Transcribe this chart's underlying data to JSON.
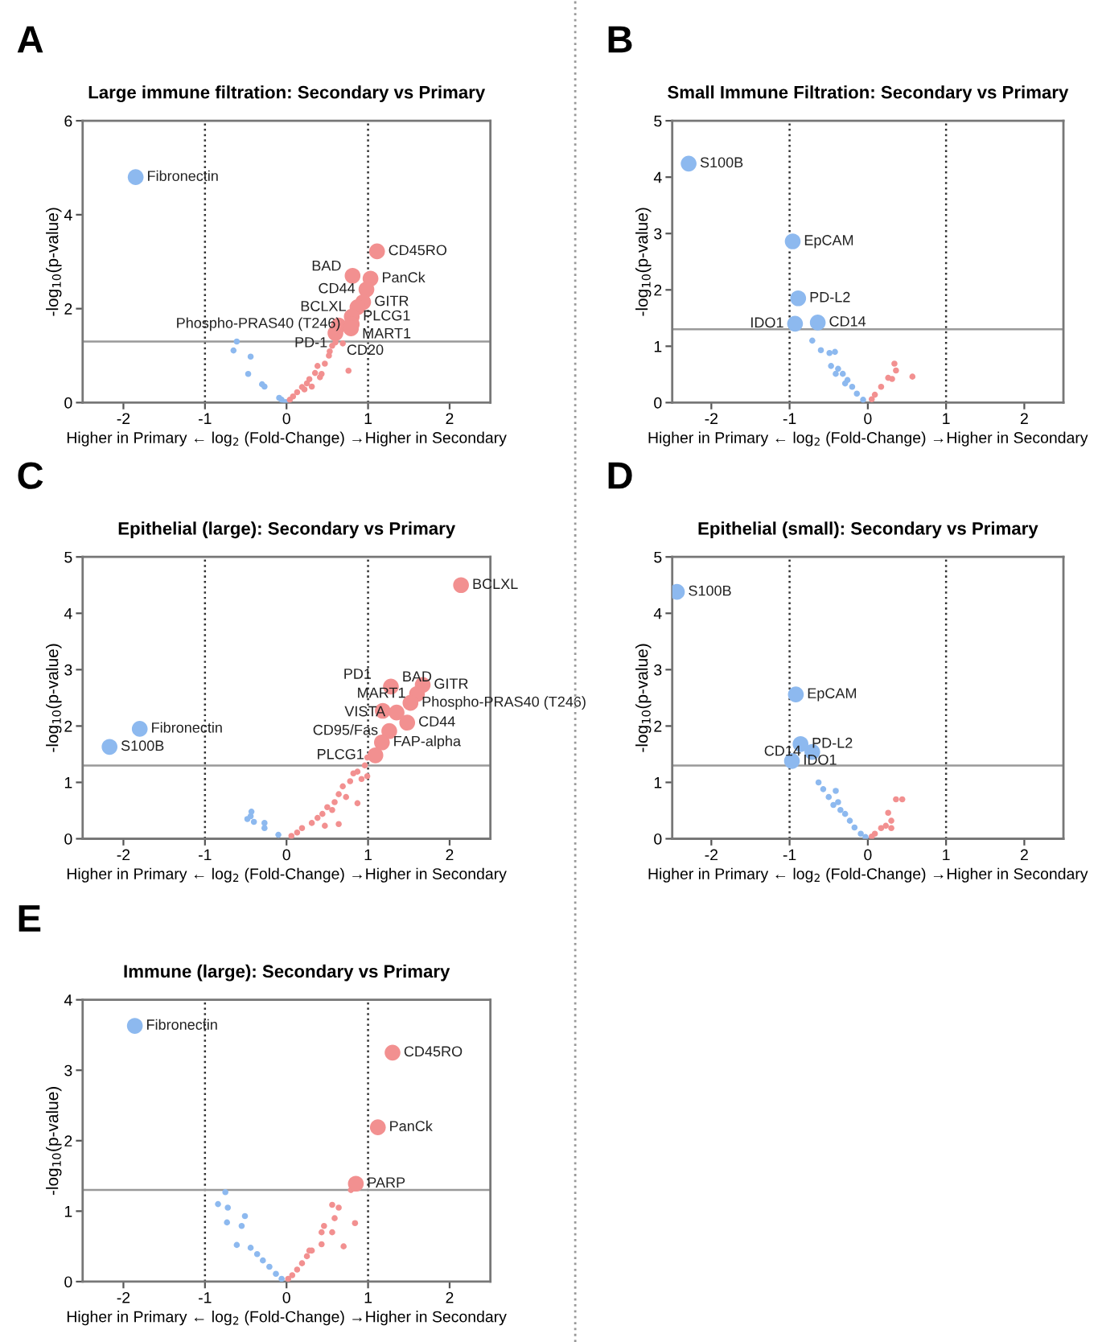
{
  "chart_data": [
    {
      "type": "bubble",
      "title": "Large immune filtration: Secondary vs Primary",
      "xlabel": "Higher in Primary ← log$_{2}$ (Fold-Change) →Higher in Secondary",
      "ylabel": "-log$_{10}$(p-value)",
      "xlim": [
        -2.5,
        2.5
      ],
      "ylim": [
        0,
        6
      ],
      "xticks": [
        -2,
        -1,
        0,
        1,
        2
      ],
      "yticks": [
        0,
        2,
        4,
        6
      ],
      "grid": false,
      "legend": false,
      "marker": "circle",
      "series": [
        {
          "color": "#8db9ef",
          "x": [
            -0.61,
            -0.65,
            -0.44,
            -0.47,
            -0.3,
            -0.27,
            -0.09,
            -0.06,
            -0.01
          ],
          "values": [
            1.3,
            1.11,
            0.98,
            0.61,
            0.39,
            0.34,
            0.1,
            0.06,
            0.01
          ],
          "sizes": [
            0.15,
            0.15,
            0.15,
            0.15,
            0.15,
            0.15,
            0.15,
            0.15,
            0.15
          ]
        },
        {
          "color": "#f29090",
          "x": [
            0.52,
            0.53,
            0.56,
            0.6,
            0.69,
            0.76,
            0.38,
            0.35,
            0.41,
            0.28,
            0.25,
            0.19,
            0.13,
            0.08,
            0.04,
            0.31,
            0.22,
            0.47,
            0.43
          ],
          "values": [
            1.0,
            1.09,
            1.21,
            1.28,
            1.26,
            0.68,
            0.78,
            0.63,
            0.54,
            0.5,
            0.41,
            0.33,
            0.22,
            0.13,
            0.06,
            0.34,
            0.28,
            0.83,
            0.61
          ],
          "sizes": [
            0.15,
            0.15,
            0.15,
            0.15,
            0.15,
            0.15,
            0.15,
            0.15,
            0.15,
            0.15,
            0.15,
            0.15,
            0.15,
            0.15,
            0.15,
            0.15,
            0.15,
            0.15,
            0.15
          ]
        },
        {
          "color": "#8db9ef",
          "x": [
            -1.85
          ],
          "values": [
            4.8
          ],
          "sizes": [
            1
          ]
        },
        {
          "color": "#f29090",
          "x": [
            1.11,
            0.81,
            1.03,
            0.98,
            0.94,
            0.87,
            0.8,
            0.8,
            0.64,
            0.6,
            0.79
          ],
          "values": [
            3.22,
            2.7,
            2.64,
            2.41,
            2.14,
            2.03,
            1.83,
            1.67,
            1.64,
            1.48,
            1.58
          ],
          "sizes": [
            1,
            1,
            1,
            1,
            1,
            1,
            1,
            1,
            1,
            1,
            1
          ]
        }
      ],
      "ref_lines": [
        {
          "axis": "x",
          "value": -1,
          "line_style": "dotted",
          "color": "#333333"
        },
        {
          "axis": "x",
          "value": 1,
          "line_style": "dotted",
          "color": "#333333"
        },
        {
          "axis": "y",
          "value": 1.3,
          "line_style": "solid",
          "color": "#999999"
        }
      ],
      "annotations": [
        "A",
        {
          "text": "Fibronectin",
          "x": -1.85,
          "y": 4.8
        },
        {
          "text": "CD45RO",
          "x": 1.11,
          "y": 3.22
        },
        {
          "text": "PanCk",
          "x": 1.03,
          "y": 2.64
        },
        {
          "text": "CD44",
          "x": 0.98,
          "y": 2.41
        },
        {
          "text": "GITR",
          "x": 0.94,
          "y": 2.14
        },
        {
          "text": "PLCG1",
          "x": 0.8,
          "y": 1.83
        },
        {
          "text": "Phospho-PRAS40 (T246)",
          "x": 0.8,
          "y": 1.67
        },
        {
          "text": "MART1",
          "x": 0.79,
          "y": 1.45
        },
        {
          "text": "BAD",
          "x": 0.81,
          "y": 2.7
        },
        {
          "text": "BCLXL",
          "x": 0.87,
          "y": 2.03
        },
        {
          "text": "PD-1",
          "x": 0.64,
          "y": 1.64
        },
        {
          "text": "CD20",
          "x": 0.6,
          "y": 1.48
        }
      ]
    },
    {
      "type": "bubble",
      "title": "Small Immune Filtration: Secondary vs Primary",
      "xlabel": "Higher in Primary ← log$_{2}$ (Fold-Change) →Higher in Secondary",
      "ylabel": "-log$_{10}$(p-value)",
      "xlim": [
        -2.5,
        2.5
      ],
      "ylim": [
        0,
        5
      ],
      "xticks": [
        -2,
        -1,
        0,
        1,
        2
      ],
      "yticks": [
        0,
        1,
        2,
        3,
        4,
        5
      ],
      "grid": false,
      "legend": false,
      "marker": "circle",
      "series": [
        {
          "color": "#8db9ef",
          "x": [
            -0.71,
            -0.6,
            -0.49,
            -0.42,
            -0.47,
            -0.38,
            -0.32,
            -0.26,
            -0.2,
            -0.14,
            -0.06,
            -0.41,
            -0.29
          ],
          "values": [
            1.1,
            0.93,
            0.88,
            0.9,
            0.65,
            0.6,
            0.51,
            0.4,
            0.28,
            0.16,
            0.05,
            0.51,
            0.34
          ],
          "sizes": [
            0.15,
            0.15,
            0.15,
            0.15,
            0.15,
            0.15,
            0.15,
            0.15,
            0.15,
            0.15,
            0.15,
            0.15,
            0.15
          ]
        },
        {
          "color": "#f29090",
          "x": [
            0.34,
            0.36,
            0.26,
            0.31,
            0.57,
            0.17,
            0.09,
            0.05
          ],
          "values": [
            0.69,
            0.57,
            0.44,
            0.42,
            0.46,
            0.28,
            0.14,
            0.06
          ],
          "sizes": [
            0.15,
            0.15,
            0.15,
            0.15,
            0.15,
            0.15,
            0.15,
            0.15
          ]
        },
        {
          "color": "#8db9ef",
          "x": [
            -2.29,
            -0.96,
            -0.89,
            -0.93,
            -0.64
          ],
          "values": [
            4.24,
            2.86,
            1.85,
            1.4,
            1.42
          ],
          "sizes": [
            1,
            1,
            1,
            1,
            1
          ]
        }
      ],
      "ref_lines": [
        {
          "axis": "x",
          "value": -1,
          "line_style": "dotted",
          "color": "#333333"
        },
        {
          "axis": "x",
          "value": 1,
          "line_style": "dotted",
          "color": "#333333"
        },
        {
          "axis": "y",
          "value": 1.3,
          "line_style": "solid",
          "color": "#999999"
        }
      ],
      "annotations": [
        "B",
        {
          "text": "S100B",
          "x": -2.29,
          "y": 4.24
        },
        {
          "text": "EpCAM",
          "x": -0.96,
          "y": 2.86
        },
        {
          "text": "PD-L2",
          "x": -0.89,
          "y": 1.85
        },
        {
          "text": "CD14",
          "x": -0.64,
          "y": 1.42
        },
        {
          "text": "IDO1",
          "x": -0.93,
          "y": 1.4
        }
      ]
    },
    {
      "type": "bubble",
      "title": "Epithelial (large): Secondary vs Primary",
      "xlabel": "Higher in Primary ← log$_{2}$ (Fold-Change) →Higher in Secondary",
      "ylabel": "-log$_{10}$(p-value)",
      "xlim": [
        -2.5,
        2.5
      ],
      "ylim": [
        0,
        5
      ],
      "xticks": [
        -2,
        -1,
        0,
        1,
        2
      ],
      "yticks": [
        0,
        1,
        2,
        3,
        4,
        5
      ],
      "grid": false,
      "legend": false,
      "marker": "circle",
      "series": [
        {
          "color": "#8db9ef",
          "x": [
            -0.43,
            -0.44,
            -0.48,
            -0.4,
            -0.27,
            -0.27,
            -0.1
          ],
          "values": [
            0.48,
            0.4,
            0.35,
            0.3,
            0.28,
            0.19,
            0.07
          ],
          "sizes": [
            0.15,
            0.15,
            0.15,
            0.15,
            0.15,
            0.15,
            0.15
          ]
        },
        {
          "color": "#f29090",
          "x": [
            0.99,
            0.96,
            0.87,
            0.82,
            0.92,
            0.78,
            0.99,
            0.69,
            0.64,
            0.73,
            0.87,
            0.59,
            0.5,
            0.44,
            0.38,
            0.31,
            0.47,
            0.19,
            0.13,
            0.06,
            0.64,
            0.56
          ],
          "values": [
            1.44,
            1.3,
            1.19,
            1.16,
            1.06,
            1.02,
            1.11,
            0.93,
            0.79,
            0.74,
            0.63,
            0.65,
            0.56,
            0.44,
            0.37,
            0.28,
            0.23,
            0.19,
            0.11,
            0.05,
            0.26,
            0.51
          ],
          "sizes": [
            0.15,
            0.15,
            0.15,
            0.15,
            0.15,
            0.15,
            0.15,
            0.15,
            0.15,
            0.15,
            0.15,
            0.15,
            0.15,
            0.15,
            0.15,
            0.15,
            0.15,
            0.15,
            0.15,
            0.15,
            0.15,
            0.15
          ]
        },
        {
          "color": "#8db9ef",
          "x": [
            -1.8,
            -2.17
          ],
          "values": [
            1.95,
            1.63
          ],
          "sizes": [
            1,
            1
          ]
        },
        {
          "color": "#f29090",
          "x": [
            2.14,
            1.28,
            1.67,
            1.6,
            1.52,
            1.18,
            1.35,
            1.48,
            1.26,
            1.17,
            1.09
          ],
          "values": [
            4.5,
            2.7,
            2.73,
            2.57,
            2.41,
            2.27,
            2.24,
            2.06,
            1.91,
            1.71,
            1.48
          ],
          "sizes": [
            1,
            1,
            1,
            1,
            1,
            1,
            1,
            1,
            1,
            1,
            1
          ]
        }
      ],
      "ref_lines": [
        {
          "axis": "x",
          "value": -1,
          "line_style": "dotted",
          "color": "#333333"
        },
        {
          "axis": "x",
          "value": 1,
          "line_style": "dotted",
          "color": "#333333"
        },
        {
          "axis": "y",
          "value": 1.3,
          "line_style": "solid",
          "color": "#999999"
        }
      ],
      "annotations": [
        "C",
        {
          "text": "BCLXL",
          "x": 2.14,
          "y": 4.5
        },
        {
          "text": "GITR",
          "x": 1.67,
          "y": 2.73
        },
        {
          "text": "MART1",
          "x": 1.6,
          "y": 2.57
        },
        {
          "text": "Phospho-PRAS40 (T246)",
          "x": 1.52,
          "y": 2.41
        },
        {
          "text": "CD44",
          "x": 1.48,
          "y": 2.06
        },
        {
          "text": "CD95/Fas",
          "x": 1.26,
          "y": 1.91
        },
        {
          "text": "FAP-alpha",
          "x": 1.17,
          "y": 1.71
        },
        {
          "text": "BAD",
          "x": 1.28,
          "y": 2.7
        },
        {
          "text": "VISTA",
          "x": 1.35,
          "y": 2.24
        },
        {
          "text": "PD1",
          "x": 1.18,
          "y": 2.27
        },
        {
          "text": "PLCG1",
          "x": 1.09,
          "y": 1.48
        },
        {
          "text": "Fibronectin",
          "x": -1.8,
          "y": 1.95
        },
        {
          "text": "S100B",
          "x": -2.17,
          "y": 1.63
        }
      ]
    },
    {
      "type": "bubble",
      "title": "Epithelial (small): Secondary vs Primary",
      "xlabel": "Higher in Primary ← log$_{2}$ (Fold-Change) →Higher in Secondary",
      "ylabel": "-log$_{10}$(p-value)",
      "xlim": [
        -2.5,
        2.5
      ],
      "ylim": [
        0,
        5
      ],
      "xticks": [
        -2,
        -1,
        0,
        1,
        2
      ],
      "yticks": [
        0,
        1,
        2,
        3,
        4,
        5
      ],
      "grid": false,
      "legend": false,
      "marker": "circle",
      "series": [
        {
          "color": "#8db9ef",
          "x": [
            -0.63,
            -0.57,
            -0.5,
            -0.41,
            -0.44,
            -0.35,
            -0.29,
            -0.23,
            -0.17,
            -0.09,
            -0.03,
            -0.38
          ],
          "values": [
            1.0,
            0.88,
            0.74,
            0.85,
            0.6,
            0.51,
            0.44,
            0.32,
            0.2,
            0.09,
            0.03,
            0.65
          ],
          "sizes": [
            0.15,
            0.15,
            0.15,
            0.15,
            0.15,
            0.15,
            0.15,
            0.15,
            0.15,
            0.15,
            0.15,
            0.15
          ]
        },
        {
          "color": "#f29090",
          "x": [
            0.36,
            0.44,
            0.26,
            0.3,
            0.17,
            0.09,
            0.23,
            0.05,
            0.3
          ],
          "values": [
            0.7,
            0.7,
            0.46,
            0.32,
            0.19,
            0.09,
            0.23,
            0.04,
            0.19
          ],
          "sizes": [
            0.15,
            0.15,
            0.15,
            0.15,
            0.15,
            0.15,
            0.15,
            0.15,
            0.15
          ]
        },
        {
          "color": "#8db9ef",
          "x": [
            -2.44,
            -0.92,
            -0.86,
            -0.71,
            -0.97
          ],
          "values": [
            4.38,
            2.56,
            1.68,
            1.54,
            1.38
          ],
          "sizes": [
            1,
            1,
            1,
            1,
            1
          ]
        }
      ],
      "ref_lines": [
        {
          "axis": "x",
          "value": -1,
          "line_style": "dotted",
          "color": "#333333"
        },
        {
          "axis": "x",
          "value": 1,
          "line_style": "dotted",
          "color": "#333333"
        },
        {
          "axis": "y",
          "value": 1.3,
          "line_style": "solid",
          "color": "#999999"
        }
      ],
      "annotations": [
        "D",
        {
          "text": "S100B",
          "x": -2.44,
          "y": 4.38
        },
        {
          "text": "EpCAM",
          "x": -0.92,
          "y": 2.56
        },
        {
          "text": "PD-L2",
          "x": -0.86,
          "y": 1.68
        },
        {
          "text": "CD14",
          "x": -0.71,
          "y": 1.54
        },
        {
          "text": "IDO1",
          "x": -0.97,
          "y": 1.38
        }
      ]
    },
    {
      "type": "bubble",
      "title": "Immune (large): Secondary vs Primary",
      "xlabel": "Higher in Primary ← log$_{2}$ (Fold-Change) →Higher in Secondary",
      "ylabel": "-log$_{10}$(p-value)",
      "xlim": [
        -2.5,
        2.5
      ],
      "ylim": [
        0,
        4
      ],
      "xticks": [
        -2,
        -1,
        0,
        1,
        2
      ],
      "yticks": [
        0,
        1,
        2,
        3,
        4
      ],
      "grid": false,
      "legend": false,
      "marker": "circle",
      "series": [
        {
          "color": "#8db9ef",
          "x": [
            -0.75,
            -0.84,
            -0.72,
            -0.73,
            -0.51,
            -0.55,
            -0.61,
            -0.44,
            -0.36,
            -0.29,
            -0.21,
            -0.13,
            -0.06
          ],
          "values": [
            1.27,
            1.1,
            1.05,
            0.84,
            0.93,
            0.79,
            0.52,
            0.48,
            0.39,
            0.3,
            0.21,
            0.11,
            0.04
          ],
          "sizes": [
            0.15,
            0.15,
            0.15,
            0.15,
            0.15,
            0.15,
            0.15,
            0.15,
            0.15,
            0.15,
            0.15,
            0.15,
            0.15
          ]
        },
        {
          "color": "#f29090",
          "x": [
            0.79,
            0.56,
            0.64,
            0.59,
            0.46,
            0.43,
            0.56,
            0.84,
            0.7,
            0.43,
            0.31,
            0.25,
            0.19,
            0.13,
            0.07,
            0.02,
            0.28
          ],
          "values": [
            1.3,
            1.09,
            1.05,
            0.9,
            0.79,
            0.7,
            0.7,
            0.83,
            0.5,
            0.53,
            0.44,
            0.36,
            0.26,
            0.17,
            0.09,
            0.04,
            0.44
          ],
          "sizes": [
            0.15,
            0.15,
            0.15,
            0.15,
            0.15,
            0.15,
            0.15,
            0.15,
            0.15,
            0.15,
            0.15,
            0.15,
            0.15,
            0.15,
            0.15,
            0.15,
            0.15
          ]
        },
        {
          "color": "#8db9ef",
          "x": [
            -1.86
          ],
          "values": [
            3.63
          ],
          "sizes": [
            1
          ]
        },
        {
          "color": "#f29090",
          "x": [
            1.3,
            1.12,
            0.85
          ],
          "values": [
            3.25,
            2.19,
            1.39
          ],
          "sizes": [
            1,
            1,
            1
          ]
        }
      ],
      "ref_lines": [
        {
          "axis": "x",
          "value": -1,
          "line_style": "dotted",
          "color": "#333333"
        },
        {
          "axis": "x",
          "value": 1,
          "line_style": "dotted",
          "color": "#333333"
        },
        {
          "axis": "y",
          "value": 1.3,
          "line_style": "solid",
          "color": "#999999"
        }
      ],
      "annotations": [
        "E",
        {
          "text": "Fibronectin",
          "x": -1.86,
          "y": 3.63
        },
        {
          "text": "CD45RO",
          "x": 1.3,
          "y": 3.25
        },
        {
          "text": "PanCk",
          "x": 1.12,
          "y": 2.19
        },
        {
          "text": "PARP",
          "x": 0.85,
          "y": 1.39
        }
      ]
    }
  ]
}
